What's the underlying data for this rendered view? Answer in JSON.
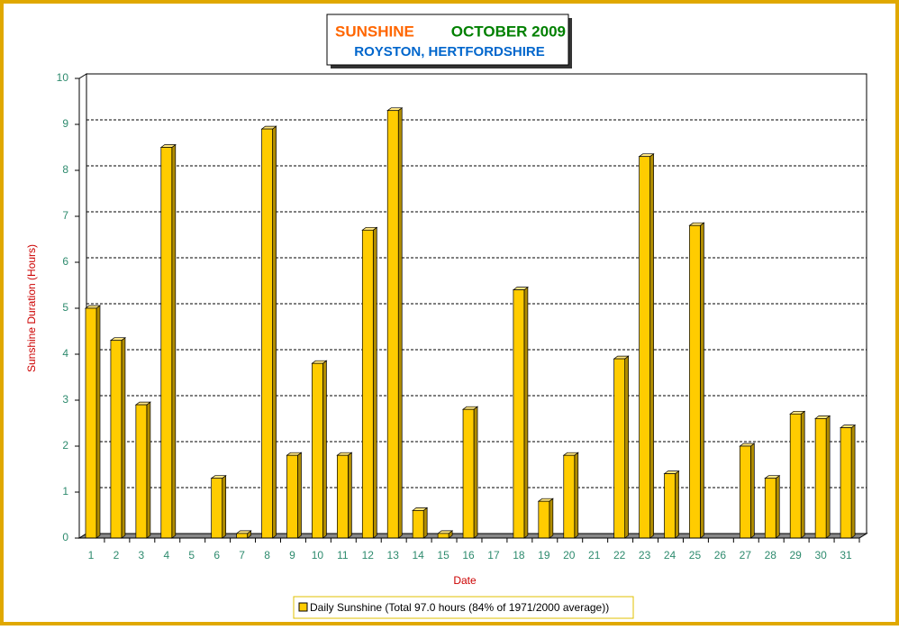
{
  "chart_data": {
    "type": "bar",
    "title": "SUNSHINE",
    "period": "OCTOBER 2009",
    "subtitle": "ROYSTON, HERTFORDSHIRE",
    "x_label": "Date",
    "y_label": "Sunshine Duration (Hours)",
    "categories": [
      "1",
      "2",
      "3",
      "4",
      "5",
      "6",
      "7",
      "8",
      "9",
      "10",
      "11",
      "12",
      "13",
      "14",
      "15",
      "16",
      "17",
      "18",
      "19",
      "20",
      "21",
      "22",
      "23",
      "24",
      "25",
      "26",
      "27",
      "28",
      "29",
      "30",
      "31"
    ],
    "series": [
      {
        "name": "Daily Sunshine (Total 97.0 hours (84% of 1971/2000 average))",
        "color": "#ffcc00",
        "values": [
          5.0,
          4.3,
          2.9,
          8.5,
          0,
          1.3,
          0.1,
          8.9,
          1.8,
          3.8,
          1.8,
          6.7,
          9.3,
          0.6,
          0.1,
          2.8,
          0,
          5.4,
          0.8,
          1.8,
          0,
          3.9,
          8.3,
          1.4,
          6.8,
          0,
          2.0,
          1.3,
          2.7,
          2.6,
          2.4
        ]
      }
    ],
    "ylim": [
      0,
      10
    ],
    "yticks": [
      0,
      1,
      2,
      3,
      4,
      5,
      6,
      7,
      8,
      9,
      10
    ],
    "grid": true
  }
}
